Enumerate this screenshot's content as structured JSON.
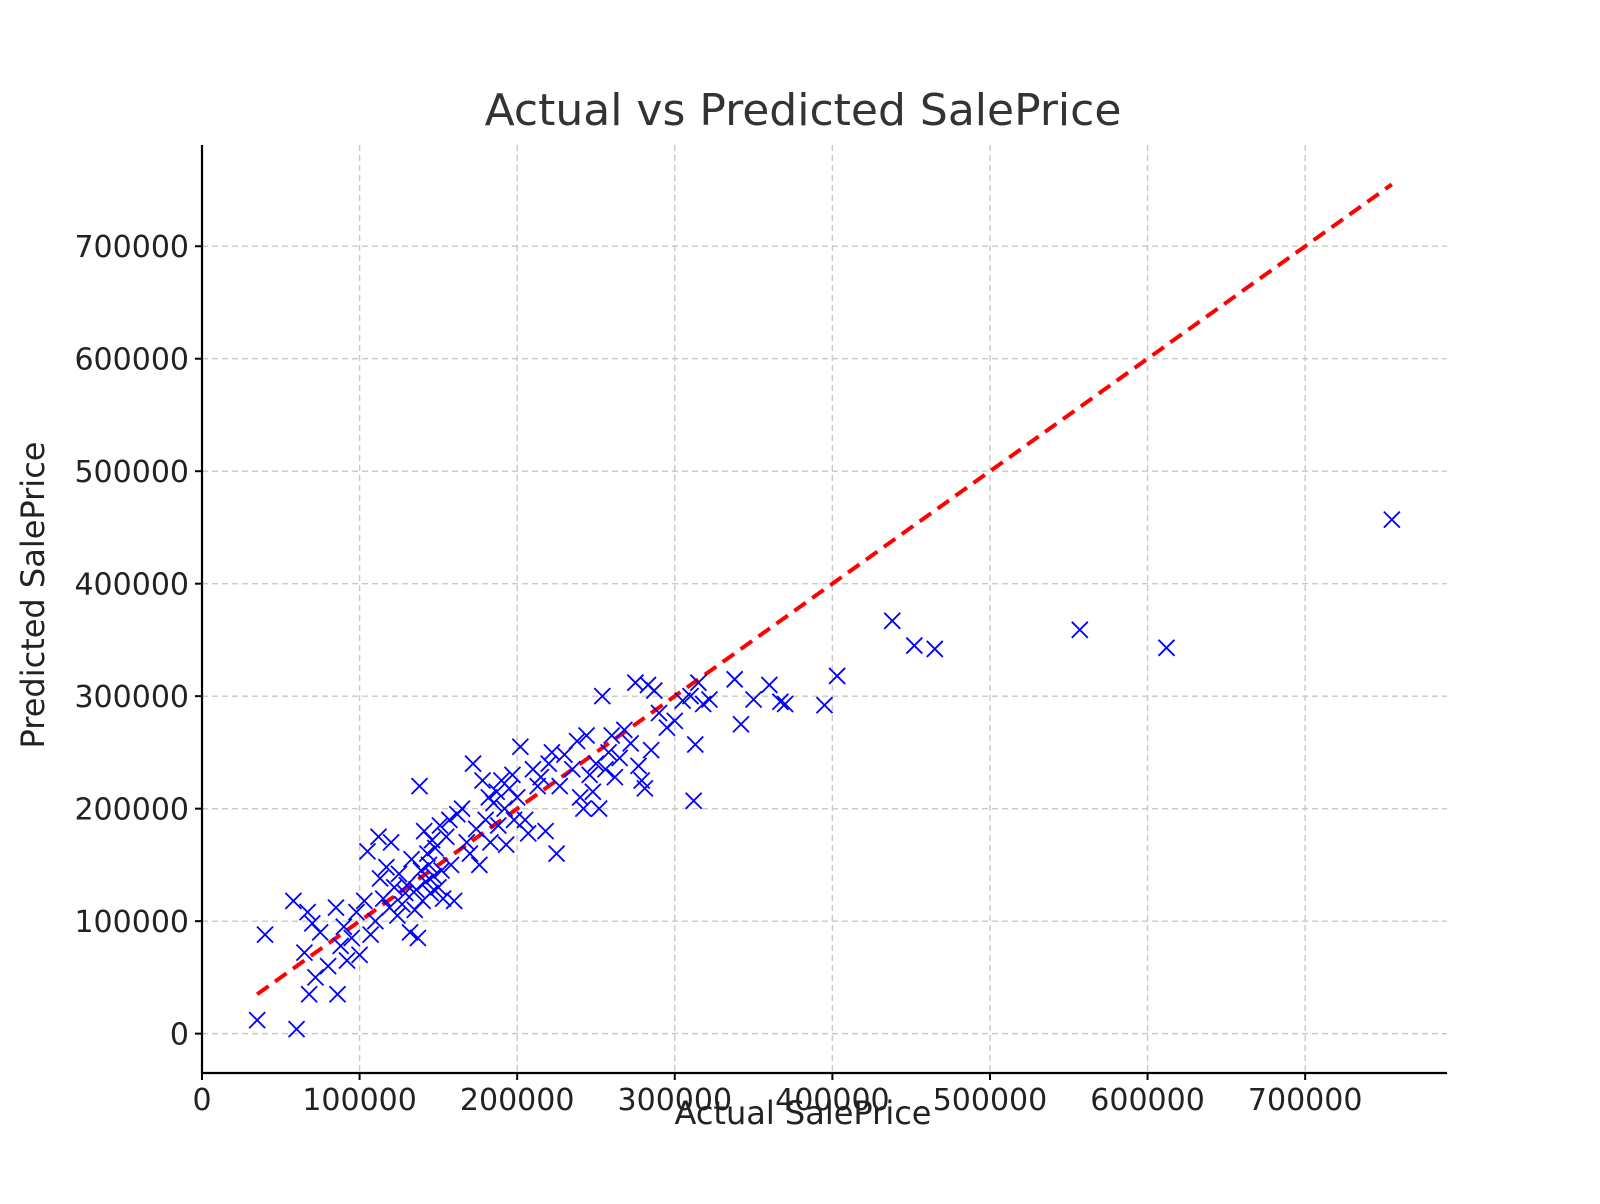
{
  "chart_data": {
    "type": "scatter",
    "title": "Actual vs Predicted SalePrice",
    "xlabel": "Actual SalePrice",
    "ylabel": "Predicted SalePrice",
    "xlim": [
      0,
      790000
    ],
    "ylim": [
      -35000,
      790000
    ],
    "xticks": [
      0,
      100000,
      200000,
      300000,
      400000,
      500000,
      600000,
      700000
    ],
    "yticks": [
      0,
      100000,
      200000,
      300000,
      400000,
      500000,
      600000,
      700000
    ],
    "xtick_labels": [
      "0",
      "100000",
      "200000",
      "300000",
      "400000",
      "500000",
      "600000",
      "700000"
    ],
    "ytick_labels": [
      "0",
      "100000",
      "200000",
      "300000",
      "400000",
      "500000",
      "600000",
      "700000"
    ],
    "grid": true,
    "marker": "x",
    "point_color": "#0000ff",
    "reference_line": {
      "style": "dashed",
      "color": "#ff0000",
      "x": [
        35000,
        755000
      ],
      "y": [
        35000,
        755000
      ]
    },
    "series": [
      {
        "points": [
          [
            35000,
            12000
          ],
          [
            40000,
            88000
          ],
          [
            58000,
            118000
          ],
          [
            60000,
            4000
          ],
          [
            65000,
            72000
          ],
          [
            67000,
            108000
          ],
          [
            68000,
            35000
          ],
          [
            70000,
            98000
          ],
          [
            72000,
            50000
          ],
          [
            75000,
            90000
          ],
          [
            80000,
            60000
          ],
          [
            85000,
            112000
          ],
          [
            86000,
            35000
          ],
          [
            88000,
            78000
          ],
          [
            90000,
            95000
          ],
          [
            92000,
            65000
          ],
          [
            95000,
            85000
          ],
          [
            98000,
            108000
          ],
          [
            100000,
            70000
          ],
          [
            103000,
            118000
          ],
          [
            105000,
            162000
          ],
          [
            107000,
            88000
          ],
          [
            110000,
            100000
          ],
          [
            112000,
            175000
          ],
          [
            113000,
            138000
          ],
          [
            115000,
            120000
          ],
          [
            117000,
            148000
          ],
          [
            119000,
            112000
          ],
          [
            120000,
            170000
          ],
          [
            122000,
            130000
          ],
          [
            124000,
            105000
          ],
          [
            125000,
            142000
          ],
          [
            127000,
            115000
          ],
          [
            129000,
            125000
          ],
          [
            130000,
            132000
          ],
          [
            132000,
            90000
          ],
          [
            133000,
            155000
          ],
          [
            135000,
            110000
          ],
          [
            136000,
            128000
          ],
          [
            137000,
            85000
          ],
          [
            138000,
            220000
          ],
          [
            139000,
            145000
          ],
          [
            140000,
            118000
          ],
          [
            141000,
            180000
          ],
          [
            142000,
            135000
          ],
          [
            143000,
            160000
          ],
          [
            144000,
            150000
          ],
          [
            145000,
            125000
          ],
          [
            146000,
            172000
          ],
          [
            147000,
            140000
          ],
          [
            148000,
            165000
          ],
          [
            150000,
            130000
          ],
          [
            151000,
            185000
          ],
          [
            152000,
            145000
          ],
          [
            153000,
            120000
          ],
          [
            155000,
            175000
          ],
          [
            157000,
            190000
          ],
          [
            158000,
            150000
          ],
          [
            160000,
            118000
          ],
          [
            162000,
            195000
          ],
          [
            165000,
            200000
          ],
          [
            168000,
            170000
          ],
          [
            170000,
            160000
          ],
          [
            172000,
            240000
          ],
          [
            174000,
            182000
          ],
          [
            176000,
            150000
          ],
          [
            178000,
            225000
          ],
          [
            180000,
            190000
          ],
          [
            182000,
            210000
          ],
          [
            183000,
            170000
          ],
          [
            185000,
            205000
          ],
          [
            187000,
            215000
          ],
          [
            188000,
            185000
          ],
          [
            190000,
            225000
          ],
          [
            192000,
            200000
          ],
          [
            193000,
            168000
          ],
          [
            195000,
            218000
          ],
          [
            197000,
            230000
          ],
          [
            198000,
            190000
          ],
          [
            200000,
            210000
          ],
          [
            202000,
            255000
          ],
          [
            205000,
            190000
          ],
          [
            207000,
            178000
          ],
          [
            210000,
            235000
          ],
          [
            213000,
            220000
          ],
          [
            215000,
            228000
          ],
          [
            218000,
            180000
          ],
          [
            220000,
            240000
          ],
          [
            222000,
            250000
          ],
          [
            225000,
            160000
          ],
          [
            227000,
            220000
          ],
          [
            230000,
            248000
          ],
          [
            235000,
            235000
          ],
          [
            238000,
            260000
          ],
          [
            240000,
            210000
          ],
          [
            242000,
            200000
          ],
          [
            244000,
            265000
          ],
          [
            246000,
            230000
          ],
          [
            248000,
            215000
          ],
          [
            250000,
            240000
          ],
          [
            252000,
            200000
          ],
          [
            254000,
            300000
          ],
          [
            256000,
            235000
          ],
          [
            258000,
            250000
          ],
          [
            260000,
            265000
          ],
          [
            262000,
            228000
          ],
          [
            265000,
            245000
          ],
          [
            268000,
            270000
          ],
          [
            272000,
            258000
          ],
          [
            275000,
            312000
          ],
          [
            277000,
            238000
          ],
          [
            279000,
            225000
          ],
          [
            281000,
            218000
          ],
          [
            283000,
            310000
          ],
          [
            285000,
            252000
          ],
          [
            287000,
            305000
          ],
          [
            290000,
            285000
          ],
          [
            295000,
            272000
          ],
          [
            300000,
            278000
          ],
          [
            305000,
            296000
          ],
          [
            310000,
            300000
          ],
          [
            312000,
            207000
          ],
          [
            313000,
            257000
          ],
          [
            315000,
            312000
          ],
          [
            318000,
            293000
          ],
          [
            322000,
            297000
          ],
          [
            338000,
            315000
          ],
          [
            342000,
            275000
          ],
          [
            350000,
            297000
          ],
          [
            360000,
            310000
          ],
          [
            367000,
            295000
          ],
          [
            370000,
            293000
          ],
          [
            395000,
            292000
          ],
          [
            403000,
            318000
          ],
          [
            438000,
            367000
          ],
          [
            452000,
            345000
          ],
          [
            465000,
            342000
          ],
          [
            557000,
            359000
          ],
          [
            612000,
            343000
          ],
          [
            755000,
            457000
          ]
        ]
      }
    ]
  }
}
